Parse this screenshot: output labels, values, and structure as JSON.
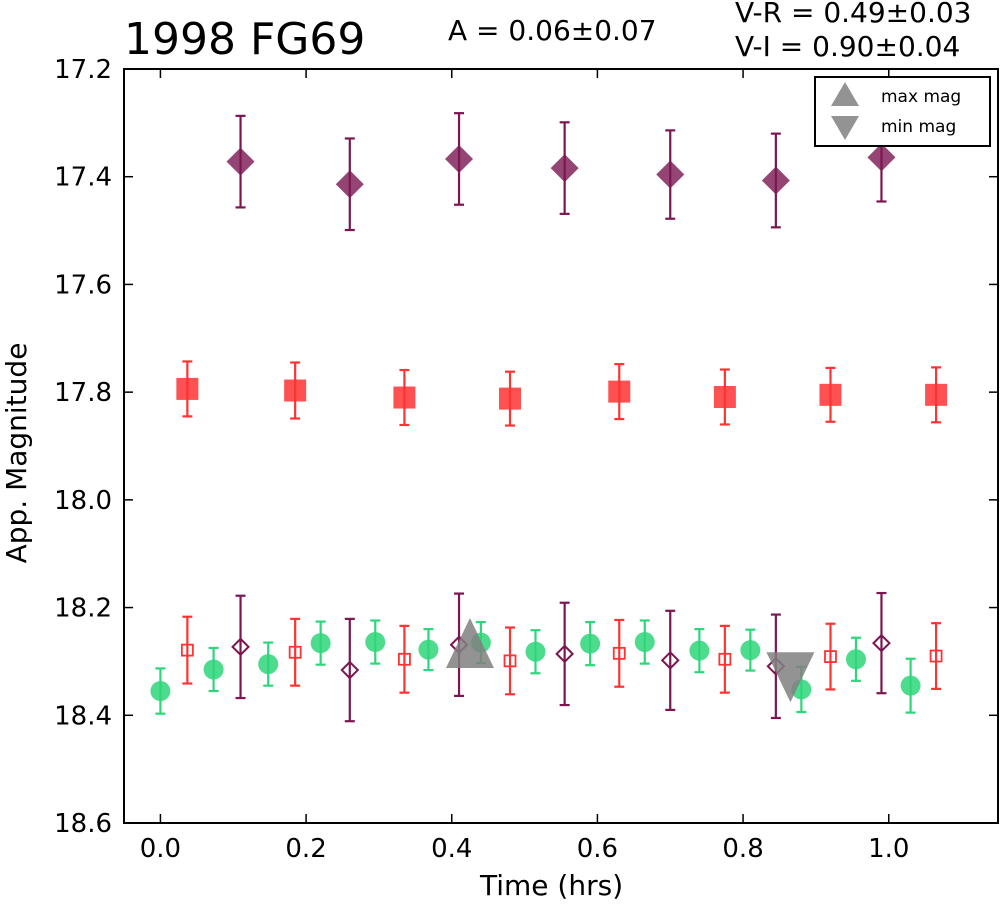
{
  "chart_data": {
    "type": "scatter",
    "title": "1998 FG69",
    "amplitude_text": "A  = 0.06±0.07",
    "colors_text": [
      "V-R = 0.49±0.03",
      "V-I  = 0.90±0.04"
    ],
    "xlabel": "Time (hrs)",
    "ylabel": "App. Magnitude",
    "xlim": [
      -0.05,
      1.15
    ],
    "ylim": [
      18.6,
      17.2
    ],
    "y_inverted": true,
    "xticks": [
      0.0,
      0.2,
      0.4,
      0.6,
      0.8,
      1.0
    ],
    "xtick_labels": [
      "0.0",
      "0.2",
      "0.4",
      "0.6",
      "0.8",
      "1.0"
    ],
    "yticks": [
      17.2,
      17.4,
      17.6,
      17.8,
      18.0,
      18.2,
      18.4,
      18.6
    ],
    "ytick_labels": [
      "17.2",
      "17.4",
      "17.6",
      "17.8",
      "18.0",
      "18.2",
      "18.4",
      "18.6"
    ],
    "grid": false,
    "legend": {
      "placement": "top-right",
      "entries": [
        {
          "label": "max mag",
          "marker": "triangle-up",
          "color": "#808080"
        },
        {
          "label": "min mag",
          "marker": "triangle-down",
          "color": "#808080"
        }
      ]
    },
    "series": [
      {
        "marker": "diamond-filled",
        "color": "#7b1650",
        "points": [
          {
            "x": 0.11,
            "y": 17.372,
            "err": 0.085
          },
          {
            "x": 0.26,
            "y": 17.414,
            "err": 0.085
          },
          {
            "x": 0.41,
            "y": 17.367,
            "err": 0.085
          },
          {
            "x": 0.555,
            "y": 17.384,
            "err": 0.085
          },
          {
            "x": 0.7,
            "y": 17.396,
            "err": 0.082
          },
          {
            "x": 0.845,
            "y": 17.407,
            "err": 0.087
          },
          {
            "x": 0.99,
            "y": 17.364,
            "err": 0.082
          }
        ]
      },
      {
        "marker": "square-filled",
        "color": "#ff3333",
        "points": [
          {
            "x": 0.037,
            "y": 17.794,
            "err": 0.051
          },
          {
            "x": 0.185,
            "y": 17.797,
            "err": 0.052
          },
          {
            "x": 0.335,
            "y": 17.81,
            "err": 0.051
          },
          {
            "x": 0.48,
            "y": 17.812,
            "err": 0.05
          },
          {
            "x": 0.63,
            "y": 17.799,
            "err": 0.051
          },
          {
            "x": 0.775,
            "y": 17.809,
            "err": 0.051
          },
          {
            "x": 0.92,
            "y": 17.805,
            "err": 0.05
          },
          {
            "x": 1.065,
            "y": 17.805,
            "err": 0.051
          }
        ]
      },
      {
        "marker": "circle-filled",
        "color": "#2ed67a",
        "points": [
          {
            "x": 0.0,
            "y": 18.355,
            "err": 0.042
          },
          {
            "x": 0.073,
            "y": 18.315,
            "err": 0.04
          },
          {
            "x": 0.148,
            "y": 18.305,
            "err": 0.04
          },
          {
            "x": 0.22,
            "y": 18.266,
            "err": 0.04
          },
          {
            "x": 0.295,
            "y": 18.264,
            "err": 0.04
          },
          {
            "x": 0.368,
            "y": 18.278,
            "err": 0.038
          },
          {
            "x": 0.44,
            "y": 18.265,
            "err": 0.038
          },
          {
            "x": 0.515,
            "y": 18.282,
            "err": 0.04
          },
          {
            "x": 0.59,
            "y": 18.267,
            "err": 0.04
          },
          {
            "x": 0.665,
            "y": 18.264,
            "err": 0.04
          },
          {
            "x": 0.74,
            "y": 18.28,
            "err": 0.04
          },
          {
            "x": 0.81,
            "y": 18.279,
            "err": 0.038
          },
          {
            "x": 0.88,
            "y": 18.352,
            "err": 0.042
          },
          {
            "x": 0.955,
            "y": 18.296,
            "err": 0.04
          },
          {
            "x": 1.03,
            "y": 18.345,
            "err": 0.05
          }
        ]
      },
      {
        "marker": "square-open",
        "color": "#ff3333",
        "points": [
          {
            "x": 0.037,
            "y": 18.279,
            "err": 0.062
          },
          {
            "x": 0.185,
            "y": 18.283,
            "err": 0.062
          },
          {
            "x": 0.335,
            "y": 18.296,
            "err": 0.062
          },
          {
            "x": 0.48,
            "y": 18.299,
            "err": 0.062
          },
          {
            "x": 0.63,
            "y": 18.285,
            "err": 0.062
          },
          {
            "x": 0.775,
            "y": 18.296,
            "err": 0.062
          },
          {
            "x": 0.92,
            "y": 18.291,
            "err": 0.061
          },
          {
            "x": 1.065,
            "y": 18.29,
            "err": 0.061
          }
        ]
      },
      {
        "marker": "diamond-open",
        "color": "#7b1650",
        "points": [
          {
            "x": 0.11,
            "y": 18.273,
            "err": 0.095
          },
          {
            "x": 0.26,
            "y": 18.316,
            "err": 0.095
          },
          {
            "x": 0.41,
            "y": 18.269,
            "err": 0.095
          },
          {
            "x": 0.555,
            "y": 18.286,
            "err": 0.095
          },
          {
            "x": 0.7,
            "y": 18.298,
            "err": 0.092
          },
          {
            "x": 0.845,
            "y": 18.309,
            "err": 0.096
          },
          {
            "x": 0.99,
            "y": 18.266,
            "err": 0.093
          }
        ]
      }
    ],
    "extrema_markers": [
      {
        "kind": "max mag",
        "marker": "triangle-up",
        "x": 0.425,
        "y": 18.275,
        "color": "#808080"
      },
      {
        "kind": "min mag",
        "marker": "triangle-down",
        "x": 0.865,
        "y": 18.32,
        "color": "#808080"
      }
    ]
  }
}
